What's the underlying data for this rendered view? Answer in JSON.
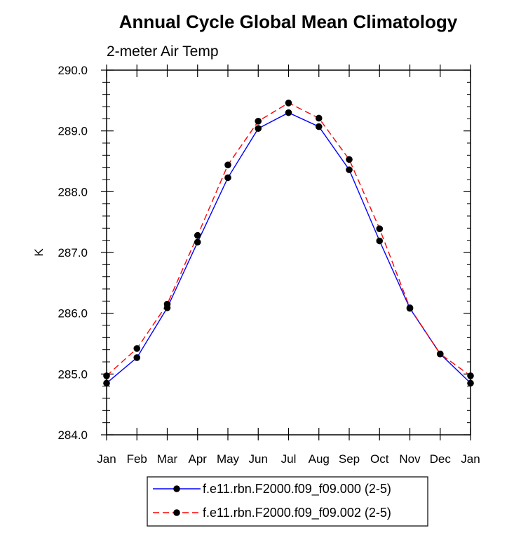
{
  "chart_data": {
    "type": "line",
    "title": "Annual Cycle Global Mean Climatology",
    "subtitle": "2-meter Air Temp",
    "xlabel": "",
    "ylabel": "K",
    "categories": [
      "Jan",
      "Feb",
      "Mar",
      "Apr",
      "May",
      "Jun",
      "Jul",
      "Aug",
      "Sep",
      "Oct",
      "Nov",
      "Dec",
      "Jan"
    ],
    "ylim": [
      284.0,
      290.0
    ],
    "y_ticks": [
      "284.0",
      "285.0",
      "286.0",
      "287.0",
      "288.0",
      "289.0",
      "290.0"
    ],
    "grid": false,
    "legend_position": "bottom-center",
    "series": [
      {
        "name": "f.e11.rbn.F2000.f09_f09.000 (2-5)",
        "color": "#0000ff",
        "line_style": "solid",
        "marker": "filled-circle",
        "values": [
          284.85,
          285.27,
          286.09,
          287.17,
          288.23,
          289.04,
          289.3,
          289.07,
          288.36,
          287.19,
          286.08,
          285.33,
          284.85
        ]
      },
      {
        "name": "f.e11.rbn.F2000.f09_f09.002 (2-5)",
        "color": "#ff0000",
        "line_style": "dashed",
        "marker": "filled-circle",
        "values": [
          284.97,
          285.42,
          286.15,
          287.28,
          288.44,
          289.16,
          289.46,
          289.21,
          288.53,
          287.39,
          286.09,
          285.33,
          284.97
        ]
      }
    ]
  }
}
